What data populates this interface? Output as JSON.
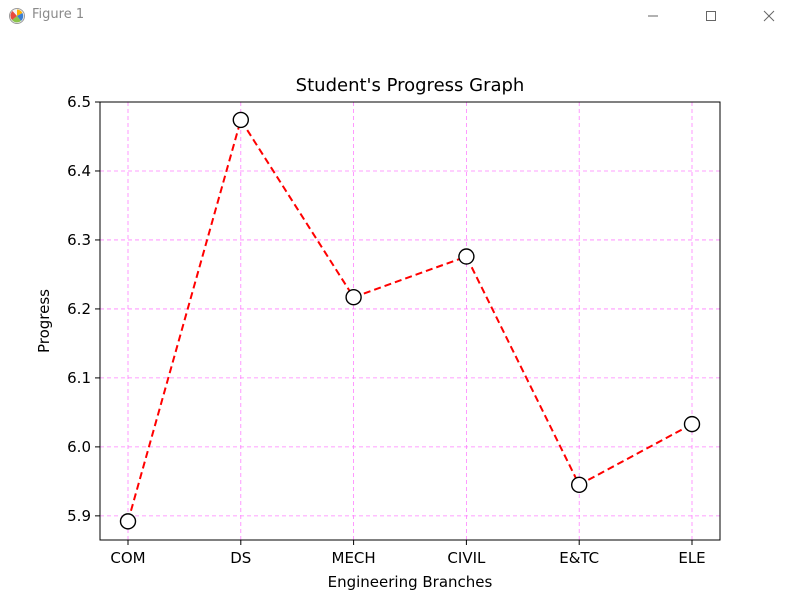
{
  "window": {
    "title": "Figure 1",
    "controls": {
      "minimize": "minimize",
      "maximize": "maximize",
      "close": "close"
    }
  },
  "chart_data": {
    "type": "line",
    "title": "Student's Progress Graph",
    "xlabel": "Engineering Branches",
    "ylabel": "Progress",
    "categories": [
      "COM",
      "DS",
      "MECH",
      "CIVIL",
      "E&TC",
      "ELE"
    ],
    "series": [
      {
        "values": [
          5.892,
          6.474,
          6.217,
          6.276,
          5.945,
          6.033
        ]
      }
    ],
    "ylim": [
      5.865,
      6.5
    ],
    "yticks": [
      5.9,
      6.0,
      6.1,
      6.2,
      6.3,
      6.4,
      6.5
    ],
    "grid": true,
    "colors": {
      "line": "#ff0000",
      "grid": "#ff80ff",
      "marker_fill": "#ffffff",
      "marker_edge": "#000000"
    },
    "line_style": "dashed",
    "marker": "circle"
  }
}
